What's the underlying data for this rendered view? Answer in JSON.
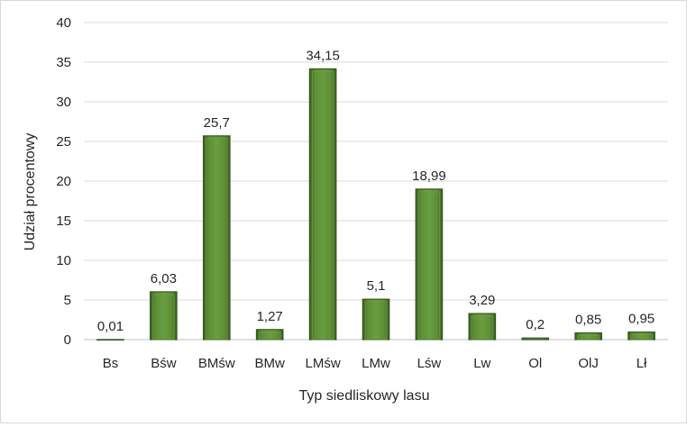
{
  "chart_data": {
    "type": "bar",
    "title": "",
    "xlabel": "Typ siedliskowy lasu",
    "ylabel": "Udział procentowy",
    "categories": [
      "Bs",
      "Bśw",
      "BMśw",
      "BMw",
      "LMśw",
      "LMw",
      "Lśw",
      "Lw",
      "Ol",
      "OlJ",
      "Lł"
    ],
    "values": [
      0.01,
      6.03,
      25.7,
      1.27,
      34.15,
      5.1,
      18.99,
      3.29,
      0.2,
      0.85,
      0.95
    ],
    "value_labels": [
      "0,01",
      "6,03",
      "25,7",
      "1,27",
      "34,15",
      "5,1",
      "18,99",
      "3,29",
      "0,2",
      "0,85",
      "0,95"
    ],
    "ylim": [
      0,
      40
    ],
    "yticks": [
      0,
      5,
      10,
      15,
      20,
      25,
      30,
      35,
      40
    ],
    "grid": true,
    "legend": "none",
    "colors": {
      "bar": "#548235",
      "bar_dark": "#385723",
      "bar_light": "#70a040",
      "grid": "#d9d9d9"
    }
  }
}
